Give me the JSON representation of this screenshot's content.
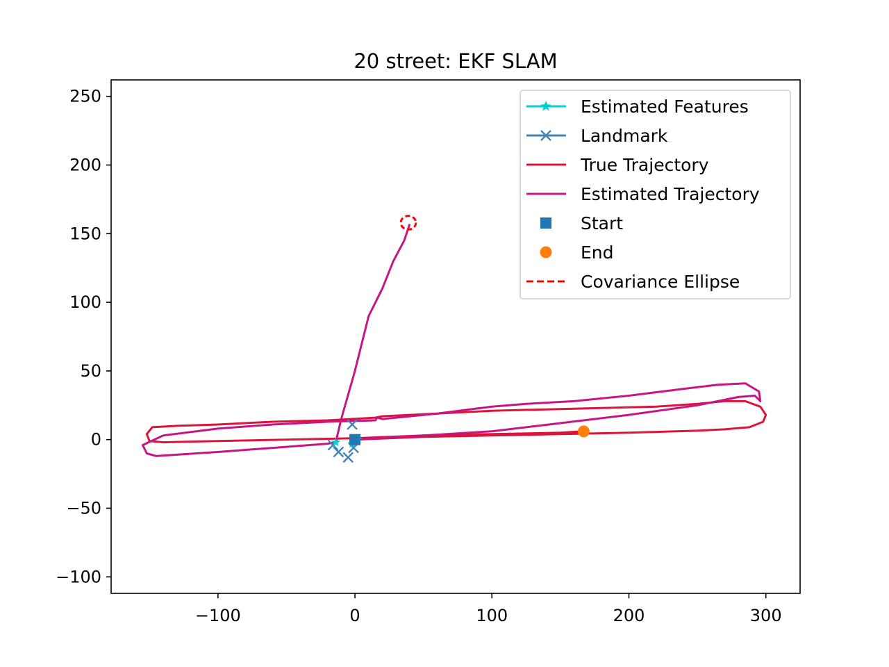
{
  "chart_data": {
    "type": "line",
    "title": "20 street: EKF SLAM",
    "xlabel": "",
    "ylabel": "",
    "xlim": [
      -178,
      325
    ],
    "ylim": [
      -112,
      262
    ],
    "xticks": [
      -100,
      0,
      100,
      200,
      300
    ],
    "yticks": [
      -100,
      -50,
      0,
      50,
      100,
      150,
      200,
      250
    ],
    "xtick_labels": [
      "−100",
      "0",
      "100",
      "200",
      "300"
    ],
    "ytick_labels": [
      "−100",
      "−50",
      "0",
      "50",
      "100",
      "150",
      "200",
      "250"
    ],
    "grid": false,
    "legend_position": "top-right",
    "colors": {
      "estimated_features": "#00ced1",
      "landmark": "#4682b4",
      "true_trajectory": "#dc143c",
      "estimated_trajectory": "#c71585",
      "start": "#1f77b4",
      "end": "#ff7f0e",
      "covariance": "#ff0000"
    },
    "legend": [
      {
        "label": "Estimated Features",
        "kind": "line-star",
        "color": "#00ced1"
      },
      {
        "label": "Landmark",
        "kind": "line-x",
        "color": "#4682b4"
      },
      {
        "label": "True Trajectory",
        "kind": "line",
        "color": "#dc143c"
      },
      {
        "label": "Estimated Trajectory",
        "kind": "line",
        "color": "#c71585"
      },
      {
        "label": "Start",
        "kind": "square",
        "color": "#1f77b4"
      },
      {
        "label": "End",
        "kind": "circle",
        "color": "#ff7f0e"
      },
      {
        "label": "Covariance Ellipse",
        "kind": "dashed",
        "color": "#ff0000"
      }
    ],
    "series": [
      {
        "name": "True Trajectory",
        "color": "#dc143c",
        "x": [
          0,
          50,
          100,
          150,
          200,
          250,
          270,
          288,
          298,
          300,
          296,
          285,
          270,
          250,
          220,
          180,
          140,
          100,
          60,
          20,
          15,
          -20,
          -60,
          -100,
          -130,
          -148,
          -152,
          -150,
          -140,
          -100,
          -50,
          0,
          50,
          100,
          150,
          167
        ],
        "y": [
          0,
          2,
          3,
          4,
          5,
          6.5,
          7.5,
          9,
          13,
          18,
          24,
          28,
          28,
          26,
          24,
          23,
          22,
          21,
          19,
          17,
          16,
          14,
          13,
          11,
          10,
          9,
          4,
          -1,
          -2,
          -1,
          0,
          1,
          3,
          4,
          5,
          6
        ]
      },
      {
        "name": "Estimated Trajectory",
        "color": "#c71585",
        "x": [
          0,
          50,
          100,
          150,
          200,
          250,
          280,
          292,
          296,
          295,
          285,
          265,
          240,
          200,
          160,
          125,
          100,
          60,
          20,
          16,
          15,
          -20,
          -60,
          -100,
          -140,
          -155,
          -152,
          -145,
          -130,
          -100,
          -60,
          -20,
          -14,
          -10,
          0,
          10,
          20,
          28,
          36,
          40
        ],
        "y": [
          0,
          3,
          6,
          12,
          18,
          25,
          31,
          32,
          28,
          35,
          41,
          40,
          37,
          32,
          28,
          26,
          24,
          19,
          15,
          16,
          14,
          13,
          11,
          8,
          3,
          -4,
          -10,
          -12,
          -11,
          -9,
          -6,
          -3,
          -2,
          15,
          50,
          90,
          110,
          130,
          145,
          157
        ]
      }
    ],
    "landmarks": {
      "x": [
        -2,
        -16,
        -12,
        -5,
        -1
      ],
      "y": [
        11,
        -4,
        -9,
        -13,
        -6
      ]
    },
    "estimated_features": {
      "x": [
        -14,
        -2,
        2
      ],
      "y": [
        -2,
        -3,
        0
      ]
    },
    "start": {
      "x": 0,
      "y": 0
    },
    "end": {
      "x": 167,
      "y": 6
    },
    "covariance_ellipse": {
      "cx": 39,
      "cy": 158,
      "rx": 5.5,
      "ry": 5
    }
  }
}
